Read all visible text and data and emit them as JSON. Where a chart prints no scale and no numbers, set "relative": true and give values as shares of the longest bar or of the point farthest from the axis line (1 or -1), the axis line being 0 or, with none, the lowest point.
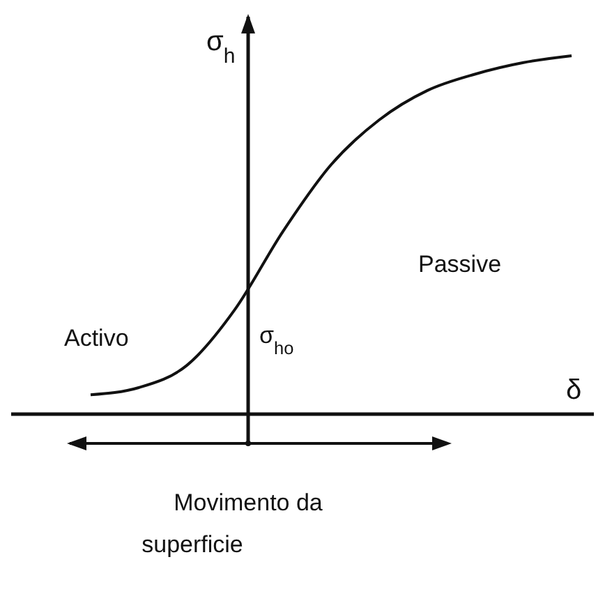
{
  "chart_data": {
    "type": "line",
    "relative": true,
    "xlabel": "δ",
    "ylabel": "σ$_{h}$",
    "categories": [
      null,
      null,
      null,
      null,
      null,
      null,
      null,
      null,
      null,
      null,
      null
    ],
    "series": [
      {
        "color": "#111111",
        "values": [
          0.054,
          0.074,
          0.136,
          0.292,
          0.51,
          0.696,
          0.821,
          0.903,
          0.949,
          0.981,
          1
        ]
      }
    ],
    "annotations": [
      "Activo",
      "Passive",
      "σ$_{ho}$",
      "Movimento da superficie"
    ],
    "marker": "none",
    "line_style": "solid"
  }
}
